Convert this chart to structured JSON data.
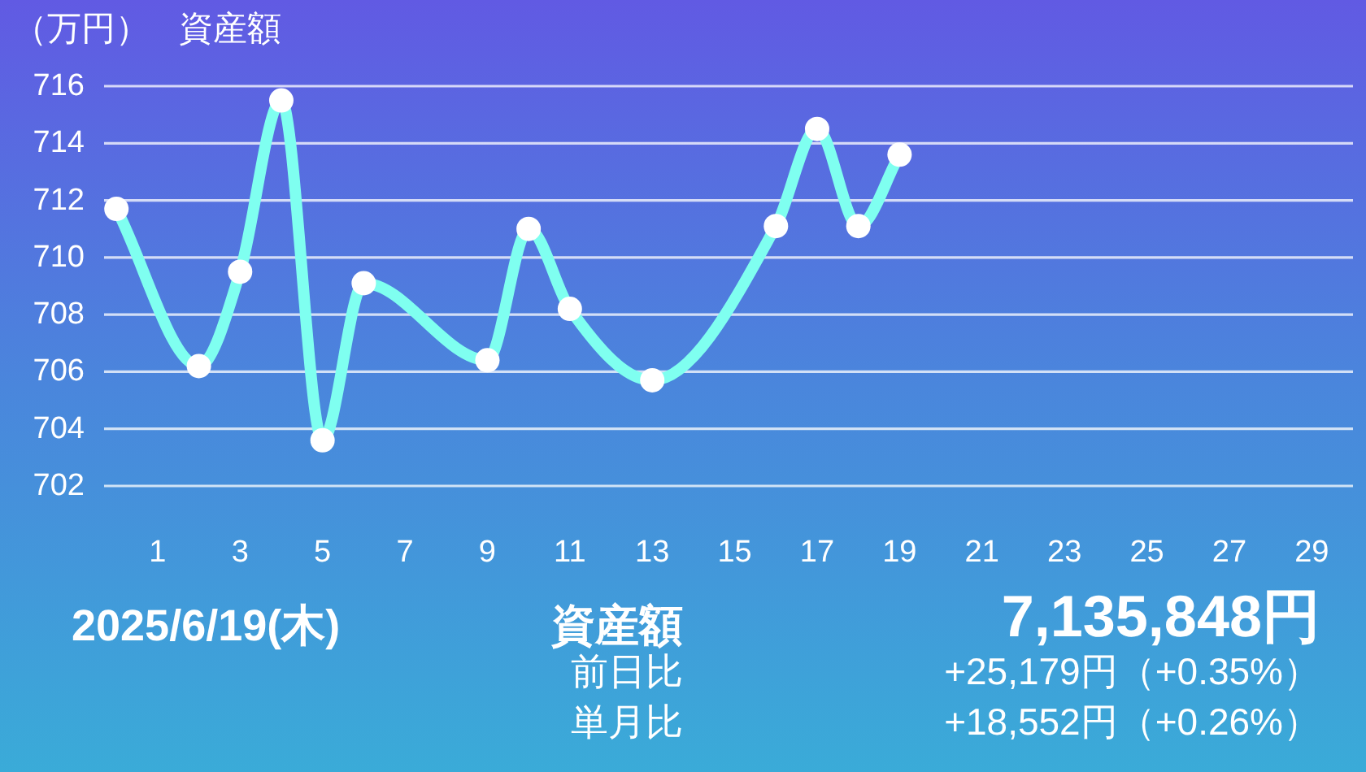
{
  "chart_data": {
    "type": "line",
    "title": "資産額",
    "ylabel": "（万円）",
    "x": [
      0,
      2,
      3,
      4,
      5,
      6,
      9,
      10,
      11,
      13,
      16,
      17,
      18,
      19
    ],
    "xlim": [
      -0.3,
      30
    ],
    "xticks": [
      1,
      3,
      5,
      7,
      9,
      11,
      13,
      15,
      17,
      19,
      21,
      23,
      25,
      27,
      29
    ],
    "ylim": [
      702,
      716
    ],
    "yticks": [
      702,
      704,
      706,
      708,
      710,
      712,
      714,
      716
    ],
    "series": [
      {
        "color": "#7ffff0",
        "values": [
          711.7,
          706.2,
          709.5,
          715.5,
          703.6,
          709.1,
          706.4,
          711.0,
          708.2,
          705.7,
          711.1,
          714.5,
          711.1,
          713.6
        ]
      }
    ],
    "grid": "y",
    "marker": "circle",
    "line_style": "solid",
    "annotations": [
      "2025/6/19(木)",
      "資産額",
      "7,135,848円",
      "前日比",
      "+25,179円（+0.35%）",
      "単月比",
      "+18,552円（+0.26%）"
    ]
  }
}
